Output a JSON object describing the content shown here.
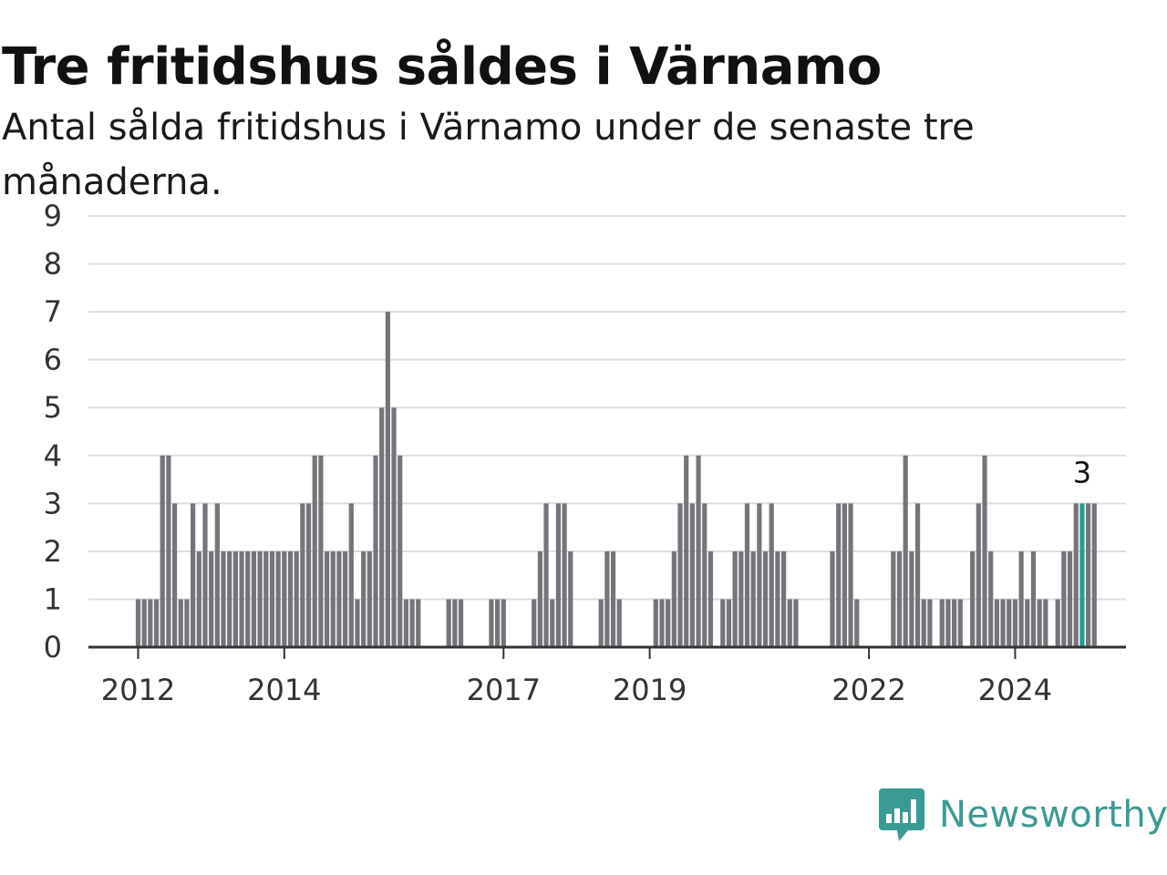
{
  "header": {
    "title": "Tre fritidshus såldes i Värnamo",
    "subtitle": "Antal sålda fritidshus i Värnamo under de senaste tre månaderna."
  },
  "brand": {
    "name": "Newsworthy",
    "icon": "newsworthy-logo-icon",
    "color": "#3a9a94"
  },
  "colors": {
    "bar": "#74747b",
    "highlight": "#1e9f96",
    "grid": "#dddddd",
    "axis": "#333333"
  },
  "chart_data": {
    "type": "bar",
    "title": "Tre fritidshus såldes i Värnamo",
    "subtitle": "Antal sålda fritidshus i Värnamo under de senaste tre månaderna.",
    "xlabel": "",
    "ylabel": "",
    "ylim": [
      0,
      9
    ],
    "yticks": [
      0,
      1,
      2,
      3,
      4,
      5,
      6,
      7,
      8,
      9
    ],
    "grid": true,
    "x_tick_labels": [
      {
        "label": "2012",
        "index": 0
      },
      {
        "label": "2014",
        "index": 24
      },
      {
        "label": "2017",
        "index": 60
      },
      {
        "label": "2019",
        "index": 84
      },
      {
        "label": "2022",
        "index": 120
      },
      {
        "label": "2024",
        "index": 144
      }
    ],
    "first_period": "2012-01",
    "period": "month",
    "values": [
      1,
      1,
      1,
      1,
      4,
      4,
      3,
      1,
      1,
      3,
      2,
      3,
      2,
      3,
      2,
      2,
      2,
      2,
      2,
      2,
      2,
      2,
      2,
      2,
      2,
      2,
      2,
      3,
      3,
      4,
      4,
      2,
      2,
      2,
      2,
      3,
      1,
      2,
      2,
      4,
      5,
      7,
      5,
      4,
      1,
      1,
      1,
      0,
      0,
      0,
      0,
      1,
      1,
      1,
      0,
      0,
      0,
      0,
      1,
      1,
      1,
      0,
      0,
      0,
      0,
      1,
      2,
      3,
      1,
      3,
      3,
      2,
      0,
      0,
      0,
      0,
      1,
      2,
      2,
      1,
      0,
      0,
      0,
      0,
      0,
      1,
      1,
      1,
      2,
      3,
      4,
      3,
      4,
      3,
      2,
      0,
      1,
      1,
      2,
      2,
      3,
      2,
      3,
      2,
      3,
      2,
      2,
      1,
      1,
      0,
      0,
      0,
      0,
      0,
      2,
      3,
      3,
      3,
      1,
      0,
      0,
      0,
      0,
      0,
      2,
      2,
      4,
      2,
      3,
      1,
      1,
      0,
      1,
      1,
      1,
      1,
      0,
      2,
      3,
      4,
      2,
      1,
      1,
      1,
      1,
      2,
      1,
      2,
      1,
      1,
      0,
      1,
      2,
      2,
      3,
      3,
      3,
      3
    ],
    "highlight_index": 155,
    "highlight_label": "3"
  }
}
